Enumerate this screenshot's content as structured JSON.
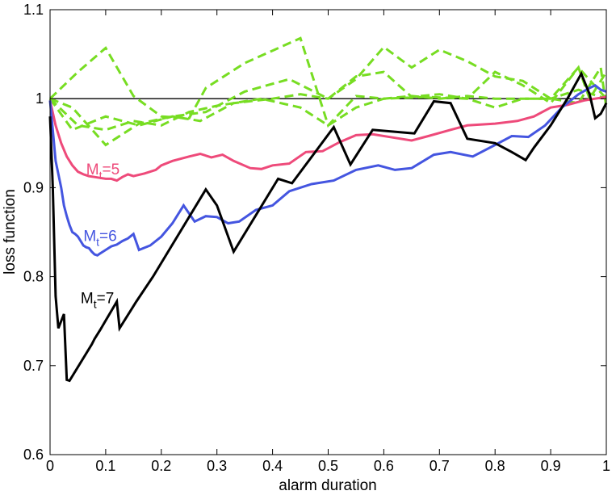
{
  "chart_data": {
    "type": "line",
    "title": "",
    "xlabel": "alarm duration",
    "ylabel": "loss function",
    "xlim": [
      0,
      1
    ],
    "ylim": [
      0.6,
      1.1
    ],
    "xticks": [
      "0",
      "0.1",
      "0.2",
      "0.3",
      "0.4",
      "0.5",
      "0.6",
      "0.7",
      "0.8",
      "0.9",
      "1"
    ],
    "yticks": [
      "0.6",
      "0.7",
      "0.8",
      "0.9",
      "1",
      "1.1"
    ],
    "grid": false,
    "reference_line": {
      "y": 1,
      "color": "#000000"
    },
    "annotations": [
      {
        "base": "M",
        "sub": "t",
        "rest": "=5",
        "x": 0.065,
        "y": 0.915,
        "color": "#ee4a7a"
      },
      {
        "base": "M",
        "sub": "t",
        "rest": "=6",
        "x": 0.06,
        "y": 0.84,
        "color": "#4455e0"
      },
      {
        "base": "M",
        "sub": "t",
        "rest": "=7",
        "x": 0.055,
        "y": 0.77,
        "color": "#000000"
      }
    ],
    "series": [
      {
        "color": "#ee4a7a",
        "dash": false,
        "x": [
          0,
          0.01,
          0.02,
          0.03,
          0.04,
          0.05,
          0.06,
          0.07,
          0.08,
          0.09,
          0.1,
          0.11,
          0.12,
          0.13,
          0.14,
          0.15,
          0.17,
          0.19,
          0.2,
          0.22,
          0.25,
          0.27,
          0.29,
          0.31,
          0.33,
          0.36,
          0.38,
          0.4,
          0.43,
          0.46,
          0.49,
          0.52,
          0.55,
          0.58,
          0.62,
          0.65,
          0.68,
          0.72,
          0.75,
          0.8,
          0.84,
          0.87,
          0.9,
          0.93,
          0.96,
          0.98,
          1.0
        ],
        "y": [
          0.998,
          0.97,
          0.95,
          0.935,
          0.925,
          0.918,
          0.915,
          0.913,
          0.912,
          0.911,
          0.91,
          0.91,
          0.908,
          0.912,
          0.915,
          0.913,
          0.916,
          0.92,
          0.925,
          0.93,
          0.935,
          0.938,
          0.934,
          0.937,
          0.93,
          0.922,
          0.921,
          0.925,
          0.927,
          0.94,
          0.941,
          0.951,
          0.959,
          0.96,
          0.956,
          0.953,
          0.958,
          0.965,
          0.97,
          0.972,
          0.975,
          0.98,
          0.99,
          0.993,
          0.998,
          1.0,
          1.002
        ]
      },
      {
        "color": "#4455e0",
        "dash": false,
        "x": [
          0,
          0.01,
          0.02,
          0.025,
          0.03,
          0.035,
          0.04,
          0.045,
          0.05,
          0.055,
          0.06,
          0.065,
          0.07,
          0.075,
          0.08,
          0.085,
          0.09,
          0.1,
          0.11,
          0.12,
          0.13,
          0.14,
          0.15,
          0.16,
          0.18,
          0.2,
          0.22,
          0.24,
          0.26,
          0.28,
          0.3,
          0.32,
          0.34,
          0.37,
          0.4,
          0.43,
          0.47,
          0.51,
          0.55,
          0.59,
          0.62,
          0.65,
          0.69,
          0.72,
          0.76,
          0.8,
          0.83,
          0.86,
          0.89,
          0.92,
          0.95,
          0.97,
          0.98,
          0.99,
          1.0
        ],
        "y": [
          0.998,
          0.93,
          0.9,
          0.88,
          0.868,
          0.858,
          0.85,
          0.848,
          0.845,
          0.84,
          0.835,
          0.833,
          0.832,
          0.828,
          0.825,
          0.824,
          0.826,
          0.83,
          0.834,
          0.836,
          0.84,
          0.843,
          0.848,
          0.83,
          0.835,
          0.845,
          0.86,
          0.88,
          0.862,
          0.868,
          0.867,
          0.86,
          0.862,
          0.875,
          0.88,
          0.896,
          0.904,
          0.908,
          0.92,
          0.925,
          0.92,
          0.922,
          0.937,
          0.94,
          0.935,
          0.948,
          0.958,
          0.957,
          0.97,
          0.99,
          1.005,
          1.012,
          1.015,
          1.01,
          1.008
        ]
      },
      {
        "color": "#000000",
        "dash": false,
        "x": [
          0,
          0.005,
          0.01,
          0.015,
          0.025,
          0.03,
          0.035,
          0.075,
          0.08,
          0.09,
          0.12,
          0.125,
          0.155,
          0.185,
          0.28,
          0.3,
          0.33,
          0.41,
          0.435,
          0.51,
          0.54,
          0.58,
          0.655,
          0.69,
          0.72,
          0.75,
          0.8,
          0.83,
          0.855,
          0.87,
          0.9,
          0.93,
          0.955,
          0.97,
          0.98,
          0.99,
          1.0
        ],
        "y": [
          0.98,
          0.9,
          0.778,
          0.742,
          0.758,
          0.684,
          0.683,
          0.724,
          0.73,
          0.74,
          0.772,
          0.742,
          0.772,
          0.8,
          0.898,
          0.88,
          0.828,
          0.91,
          0.905,
          0.968,
          0.926,
          0.965,
          0.961,
          0.997,
          0.995,
          0.955,
          0.95,
          0.94,
          0.931,
          0.945,
          0.97,
          1.0,
          1.028,
          1.005,
          0.978,
          0.983,
          0.995
        ]
      },
      {
        "color": "#77dd22",
        "dash": true,
        "x": [
          0,
          0.05,
          0.1,
          0.15,
          0.2,
          0.25,
          0.28,
          0.35,
          0.45,
          0.5,
          0.55,
          0.6,
          0.65,
          0.7,
          0.75,
          0.8,
          0.85,
          0.9,
          0.95,
          1.0
        ],
        "y": [
          1.0,
          1.03,
          1.057,
          1.003,
          0.98,
          0.978,
          1.012,
          1.04,
          1.068,
          0.97,
          1.003,
          1.0,
          1.003,
          1.0,
          1.003,
          1.0,
          1.0,
          1.0,
          1.01,
          1.0
        ]
      },
      {
        "color": "#77dd22",
        "dash": true,
        "x": [
          0,
          0.04,
          0.1,
          0.16,
          0.22,
          0.28,
          0.35,
          0.43,
          0.5,
          0.55,
          0.6,
          0.65,
          0.7,
          0.75,
          0.8,
          0.85,
          0.9,
          0.95,
          0.97,
          1.0
        ],
        "y": [
          1.0,
          0.99,
          0.948,
          0.972,
          0.98,
          0.985,
          1.008,
          1.022,
          1.0,
          1.025,
          1.03,
          1.002,
          1.005,
          1.0,
          1.03,
          1.015,
          0.995,
          1.035,
          1.0,
          1.03
        ]
      },
      {
        "color": "#77dd22",
        "dash": true,
        "x": [
          0,
          0.04,
          0.1,
          0.16,
          0.22,
          0.27,
          0.33,
          0.4,
          0.45,
          0.5,
          0.55,
          0.6,
          0.65,
          0.7,
          0.75,
          0.8,
          0.85,
          0.9,
          0.95,
          1.0
        ],
        "y": [
          1.0,
          0.965,
          0.98,
          0.97,
          0.98,
          0.975,
          0.995,
          1.0,
          1.005,
          1.0,
          1.022,
          1.058,
          1.035,
          1.055,
          1.042,
          1.025,
          1.02,
          1.0,
          1.035,
          1.0
        ]
      },
      {
        "color": "#77dd22",
        "dash": true,
        "x": [
          0,
          0.05,
          0.1,
          0.15,
          0.2,
          0.25,
          0.3,
          0.38,
          0.45,
          0.5,
          0.55,
          0.6,
          0.68,
          0.75,
          0.8,
          0.85,
          0.9,
          0.95,
          0.99,
          1.0
        ],
        "y": [
          1.0,
          0.97,
          0.965,
          0.975,
          0.97,
          0.985,
          0.992,
          1.0,
          0.99,
          0.97,
          0.99,
          1.0,
          1.002,
          1.0,
          0.99,
          1.0,
          1.0,
          0.995,
          1.035,
          0.99
        ]
      }
    ]
  }
}
